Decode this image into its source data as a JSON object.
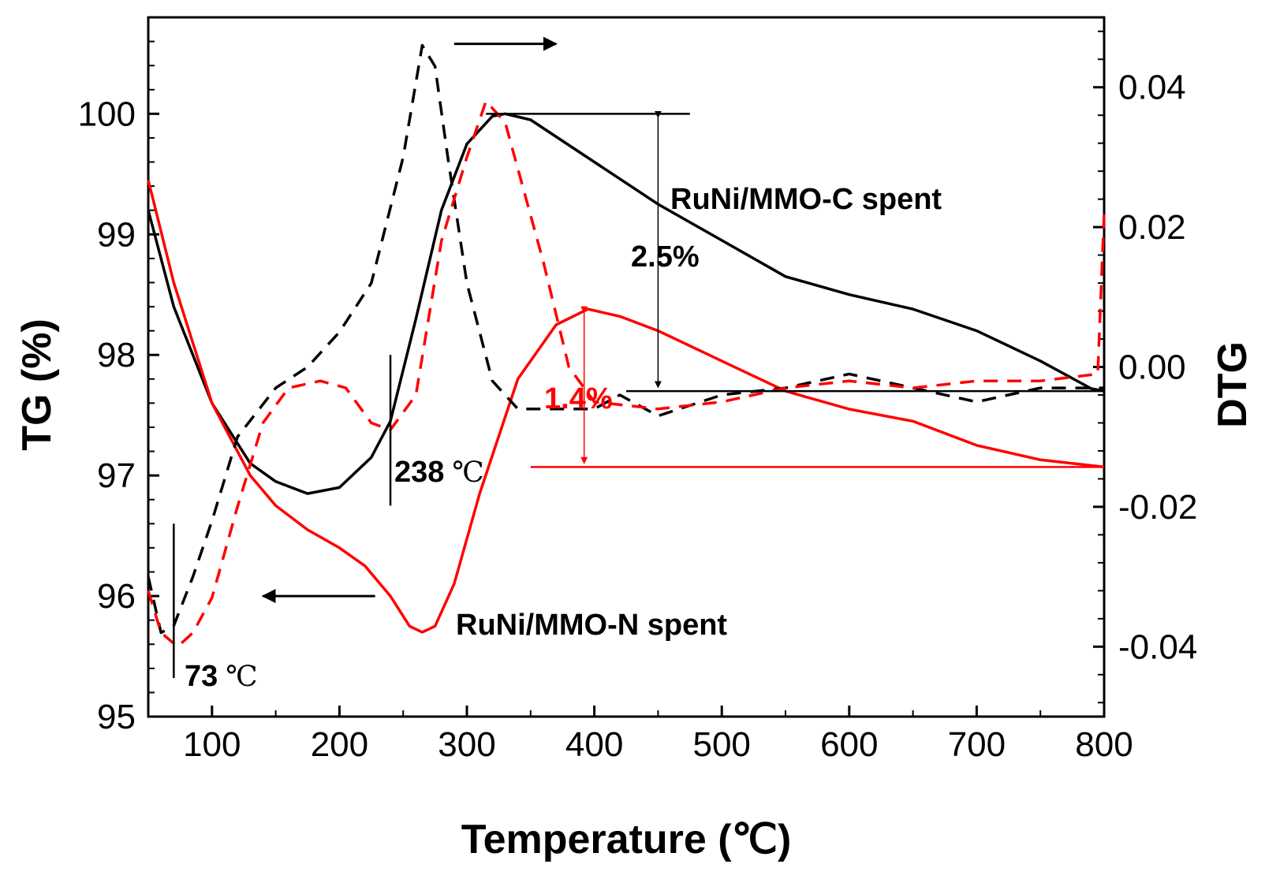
{
  "chart_data": {
    "type": "line",
    "xlabel": "Temperature (℃)",
    "ylabel_left": "TG (%)",
    "ylabel_right": "DTG",
    "xlim": [
      50,
      800
    ],
    "ylim_left": [
      95,
      100.8
    ],
    "ylim_right": [
      -0.05,
      0.05
    ],
    "x_ticks": [
      100,
      200,
      300,
      400,
      500,
      600,
      700,
      800
    ],
    "y_left_ticks": [
      95,
      96,
      97,
      98,
      99,
      100
    ],
    "y_right_ticks": [
      -0.04,
      -0.02,
      0.0,
      0.02,
      0.04
    ],
    "y_right_tick_labels": [
      "-0.04",
      "-0.02",
      "0.00",
      "0.02",
      "0.04"
    ],
    "colors": {
      "c": "#000000",
      "n": "#ff0000"
    },
    "series": [
      {
        "name": "RuNi/MMO-C spent TG",
        "axis": "left",
        "color": "#000000",
        "dash": false,
        "x": [
          50,
          70,
          100,
          130,
          150,
          175,
          200,
          225,
          240,
          260,
          280,
          300,
          320,
          330,
          350,
          400,
          450,
          500,
          550,
          600,
          650,
          700,
          750,
          790,
          800
        ],
        "y": [
          99.2,
          98.4,
          97.6,
          97.1,
          96.95,
          96.85,
          96.9,
          97.15,
          97.45,
          98.3,
          99.2,
          99.75,
          99.98,
          100.0,
          99.95,
          99.6,
          99.25,
          98.95,
          98.65,
          98.5,
          98.38,
          98.2,
          97.95,
          97.72,
          97.7
        ]
      },
      {
        "name": "RuNi/MMO-N spent TG",
        "axis": "left",
        "color": "#ff0000",
        "dash": false,
        "x": [
          50,
          70,
          100,
          130,
          150,
          175,
          200,
          220,
          240,
          255,
          265,
          275,
          290,
          310,
          340,
          370,
          395,
          420,
          450,
          500,
          550,
          600,
          650,
          700,
          750,
          800
        ],
        "y": [
          99.45,
          98.6,
          97.6,
          97.0,
          96.75,
          96.55,
          96.4,
          96.25,
          96.0,
          95.75,
          95.7,
          95.75,
          96.1,
          96.85,
          97.8,
          98.25,
          98.38,
          98.32,
          98.2,
          97.95,
          97.7,
          97.55,
          97.45,
          97.25,
          97.13,
          97.07
        ]
      },
      {
        "name": "RuNi/MMO-C spent DTG",
        "axis": "right",
        "color": "#000000",
        "dash": true,
        "x": [
          50,
          60,
          70,
          85,
          100,
          120,
          150,
          175,
          200,
          225,
          250,
          265,
          275,
          285,
          300,
          320,
          340,
          355,
          380,
          400,
          420,
          450,
          500,
          550,
          600,
          625,
          650,
          700,
          750,
          800
        ],
        "y": [
          -0.03,
          -0.038,
          -0.037,
          -0.03,
          -0.022,
          -0.01,
          -0.003,
          0.0,
          0.005,
          0.012,
          0.03,
          0.046,
          0.043,
          0.03,
          0.012,
          -0.002,
          -0.006,
          -0.006,
          -0.006,
          -0.006,
          -0.004,
          -0.007,
          -0.004,
          -0.003,
          -0.001,
          -0.002,
          -0.003,
          -0.005,
          -0.003,
          -0.003
        ]
      },
      {
        "name": "RuNi/MMO-N spent DTG",
        "axis": "right",
        "color": "#ff0000",
        "dash": true,
        "x": [
          50,
          60,
          73,
          85,
          100,
          120,
          140,
          160,
          185,
          205,
          225,
          240,
          260,
          280,
          300,
          315,
          330,
          360,
          380,
          400,
          450,
          500,
          550,
          600,
          650,
          700,
          750,
          795,
          800
        ],
        "y": [
          -0.032,
          -0.038,
          -0.04,
          -0.038,
          -0.033,
          -0.02,
          -0.008,
          -0.003,
          -0.002,
          -0.003,
          -0.008,
          -0.009,
          -0.004,
          0.018,
          0.03,
          0.038,
          0.035,
          0.015,
          0.0,
          -0.005,
          -0.006,
          -0.005,
          -0.003,
          -0.002,
          -0.003,
          -0.002,
          -0.002,
          -0.001,
          0.022
        ]
      }
    ],
    "annotations": {
      "label_c": "RuNi/MMO-C spent",
      "label_n": "RuNi/MMO-N spent",
      "loss_c": "2.5%",
      "loss_n": "1.4%",
      "temp1_value": "73",
      "temp2_value": "238",
      "temp_unit": "℃"
    }
  }
}
